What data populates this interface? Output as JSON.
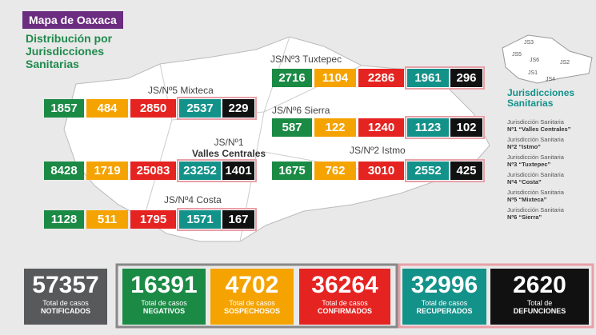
{
  "header": {
    "badge": "Mapa de Oaxaca",
    "title_lines": [
      "Distribución por",
      "Jurisdicciones",
      "Sanitarias"
    ]
  },
  "regions": [
    {
      "label_lines": [
        "JS/Nº3 Tuxtepec"
      ],
      "values": [
        2716,
        1104,
        2286,
        1961,
        296
      ]
    },
    {
      "label_lines": [
        "JS/Nº5 Mixteca"
      ],
      "values": [
        1857,
        484,
        2850,
        2537,
        229
      ]
    },
    {
      "label_lines": [
        "JS/Nº6 Sierra"
      ],
      "values": [
        587,
        122,
        1240,
        1123,
        102
      ]
    },
    {
      "label_lines": [
        "JS/Nº1",
        "Valles Centrales"
      ],
      "values": [
        8428,
        1719,
        25083,
        23252,
        1401
      ]
    },
    {
      "label_lines": [
        "JS/Nº2 Istmo"
      ],
      "values": [
        1675,
        762,
        3010,
        2552,
        425
      ]
    },
    {
      "label_lines": [
        "JS/Nº4 Costa"
      ],
      "values": [
        1128,
        511,
        1795,
        1571,
        167
      ]
    }
  ],
  "minimap": {
    "labels": [
      "JS3",
      "JS5",
      "JS6",
      "JS1",
      "JS2",
      "JS4"
    ]
  },
  "legend": {
    "title_lines": [
      "Jurisdicciones",
      "Sanitarias"
    ],
    "items": [
      {
        "line1": "Jurisdicción Sanitaria",
        "line2": "Nº1 “Valles Centrales”"
      },
      {
        "line1": "Jurisdicción Sanitaria",
        "line2": "Nº2 “Istmo”"
      },
      {
        "line1": "Jurisdicción Sanitaria",
        "line2": "Nº3 “Tuxtepec”"
      },
      {
        "line1": "Jurisdicción Sanitaria",
        "line2": "Nº4 “Costa”"
      },
      {
        "line1": "Jurisdicción Sanitaria",
        "line2": "Nº5 “Mixteca”"
      },
      {
        "line1": "Jurisdicción Sanitaria",
        "line2": "Nº6 “Sierra”"
      }
    ]
  },
  "totals": [
    {
      "value": 57357,
      "line1": "Total de casos",
      "line2": "NOTIFICADOS"
    },
    {
      "value": 16391,
      "line1": "Total de casos",
      "line2": "NEGATIVOS"
    },
    {
      "value": 4702,
      "line1": "Total de casos",
      "line2": "SOSPECHOSOS"
    },
    {
      "value": 36264,
      "line1": "Total de casos",
      "line2": "CONFIRMADOS"
    },
    {
      "value": 32996,
      "line1": "Total de casos",
      "line2": "RECUPERADOS"
    },
    {
      "value": 2620,
      "line1": "Total de",
      "line2": "DEFUNCIONES"
    }
  ]
}
